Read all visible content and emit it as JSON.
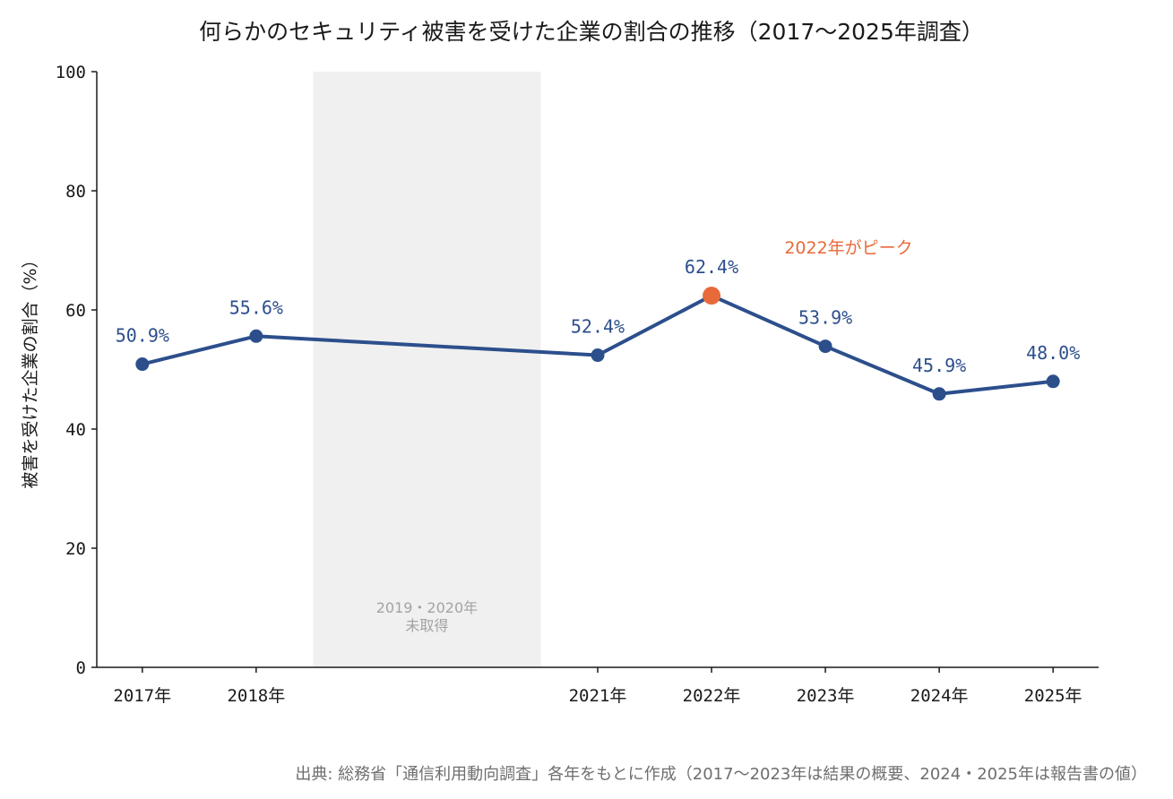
{
  "chart_data": {
    "type": "line",
    "title": "何らかのセキュリティ被害を受けた企業の割合の推移（2017〜2025年調査）",
    "ylabel": "被害を受けた企業の割合（%）",
    "xlabel": "",
    "ylim": [
      0,
      100
    ],
    "yticks": [
      "0",
      "20",
      "40",
      "60",
      "80",
      "100"
    ],
    "grid": false,
    "legend": "none",
    "x": [
      2017,
      2018,
      2021,
      2022,
      2023,
      2024,
      2025
    ],
    "x_range": [
      2016.6,
      2025.4
    ],
    "tick_labels": [
      "2017年",
      "2018年",
      "2021年",
      "2022年",
      "2023年",
      "2024年",
      "2025年"
    ],
    "series": [
      {
        "values": [
          50.9,
          55.6,
          52.4,
          62.4,
          53.9,
          45.9,
          48.0
        ],
        "labels": [
          "50.9%",
          "55.6%",
          "52.4%",
          "62.4%",
          "53.9%",
          "45.9%",
          "48.0%"
        ],
        "color": "#2c4f8c"
      }
    ],
    "highlight": {
      "x": 2022,
      "value": 62.4,
      "color": "#e8693a"
    },
    "annotations": {
      "peak": "2022年がピーク",
      "gap_line1": "2019・2020年",
      "gap_line2": "未取得",
      "gap_range": [
        2018.5,
        2020.5
      ]
    },
    "source": "出典: 総務省「通信利用動向調査」各年をもとに作成（2017〜2023年は結果の概要、2024・2025年は報告書の値）"
  },
  "colors": {
    "line": "#2c4f8c",
    "peak": "#e8693a",
    "gap_band": "#f0f0f0",
    "gap_text": "#a3a3a3",
    "axis": "#1a1a1a",
    "source": "#6e6e6e"
  }
}
